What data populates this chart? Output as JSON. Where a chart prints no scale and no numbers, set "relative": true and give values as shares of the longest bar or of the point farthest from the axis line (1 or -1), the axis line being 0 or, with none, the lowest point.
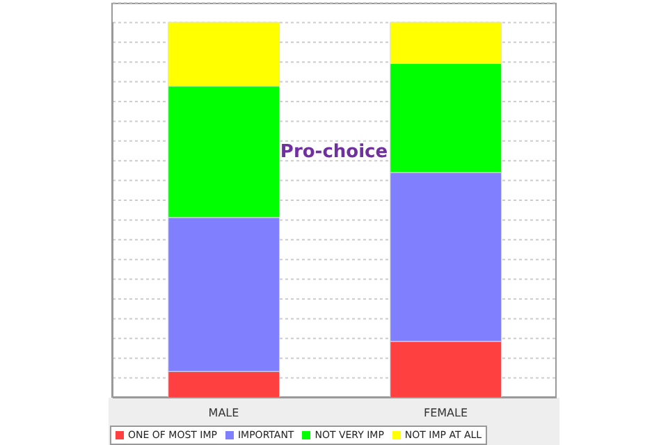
{
  "chart_data": {
    "type": "bar",
    "stacked": true,
    "relative": true,
    "categories": [
      "MALE",
      "FEMALE"
    ],
    "series": [
      {
        "name": "ONE OF MOST IMP",
        "color": "#ff4040",
        "values": [
          0.07,
          0.15
        ]
      },
      {
        "name": "IMPORTANT",
        "color": "#8080ff",
        "values": [
          0.41,
          0.45
        ]
      },
      {
        "name": "NOT VERY IMP",
        "color": "#00ff00",
        "values": [
          0.35,
          0.29
        ]
      },
      {
        "name": "NOT IMP AT ALL",
        "color": "#ffff00",
        "values": [
          0.17,
          0.11
        ]
      }
    ],
    "annotations": [
      "Pro-choice"
    ],
    "grid": "y",
    "legend": "bottom"
  }
}
